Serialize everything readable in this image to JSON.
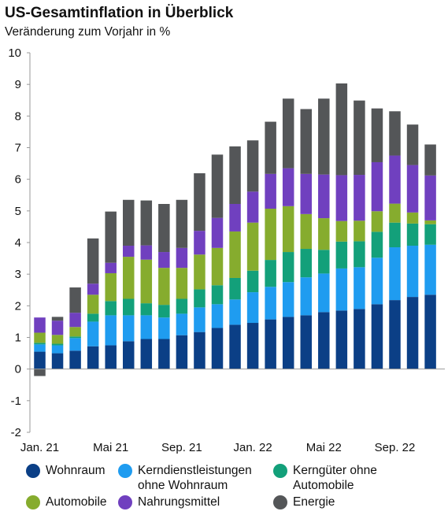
{
  "title": "US-Gesamtinflation in Überblick",
  "subtitle": "Veränderung zum Vorjahr in %",
  "colors": {
    "wohnraum": "#0b3f86",
    "kerndienst": "#1f9cf0",
    "kerngueter": "#13a07a",
    "automobile": "#86ac2e",
    "nahrung": "#7040bf",
    "energie": "#545658",
    "axis": "#999999"
  },
  "legend": [
    {
      "key": "wohnraum",
      "label": "Wohnraum"
    },
    {
      "key": "kerndienst",
      "label": "Kerndienstleistungen\nohne Wohnraum"
    },
    {
      "key": "kerngueter",
      "label": "Kerngüter ohne\nAutomobile"
    },
    {
      "key": "automobile",
      "label": "Automobile"
    },
    {
      "key": "nahrung",
      "label": "Nahrungsmittel"
    },
    {
      "key": "energie",
      "label": "Energie"
    }
  ],
  "chart_data": {
    "type": "bar",
    "stacked": true,
    "title": "US-Gesamtinflation in Überblick",
    "subtitle": "Veränderung zum Vorjahr in %",
    "xlabel": "",
    "ylabel": "",
    "ylim": [
      -2,
      10
    ],
    "yticks": [
      -2,
      -1,
      0,
      1,
      2,
      3,
      4,
      5,
      6,
      7,
      8,
      9,
      10
    ],
    "xtick_labels": [
      {
        "index": 0,
        "label": "Jan. 21"
      },
      {
        "index": 4,
        "label": "Mai 21"
      },
      {
        "index": 8,
        "label": "Sep. 21"
      },
      {
        "index": 12,
        "label": "Jan. 22"
      },
      {
        "index": 16,
        "label": "Mai 22"
      },
      {
        "index": 20,
        "label": "Sep. 22"
      }
    ],
    "categories": [
      "Jan 21",
      "Feb 21",
      "Mär 21",
      "Apr 21",
      "Mai 21",
      "Jun 21",
      "Jul 21",
      "Aug 21",
      "Sep 21",
      "Okt 21",
      "Nov 21",
      "Dez 21",
      "Jan 22",
      "Feb 22",
      "Mär 22",
      "Apr 22",
      "Mai 22",
      "Jun 22",
      "Jul 22",
      "Aug 22",
      "Sep 22",
      "Okt 22",
      "Nov 22"
    ],
    "grid": false,
    "legend_position": "bottom",
    "series": [
      {
        "name": "Wohnraum",
        "key": "wohnraum",
        "values": [
          0.55,
          0.5,
          0.58,
          0.72,
          0.75,
          0.88,
          0.95,
          0.95,
          1.07,
          1.17,
          1.3,
          1.4,
          1.46,
          1.57,
          1.65,
          1.7,
          1.8,
          1.85,
          1.9,
          2.05,
          2.18,
          2.28,
          2.35
        ]
      },
      {
        "name": "Kerndienstleistungen ohne Wohnraum",
        "key": "kerndienst",
        "values": [
          0.23,
          0.25,
          0.4,
          0.78,
          0.95,
          0.82,
          0.75,
          0.68,
          0.68,
          0.78,
          0.75,
          0.8,
          0.97,
          1.03,
          1.1,
          1.2,
          1.22,
          1.33,
          1.32,
          1.47,
          1.67,
          1.62,
          1.58
        ]
      },
      {
        "name": "Kerngüter ohne Automobile",
        "key": "kerngueter",
        "values": [
          0.05,
          0.05,
          0.05,
          0.25,
          0.45,
          0.52,
          0.38,
          0.4,
          0.47,
          0.57,
          0.6,
          0.68,
          0.68,
          0.85,
          0.95,
          0.9,
          0.75,
          0.85,
          0.82,
          0.82,
          0.78,
          0.7,
          0.65
        ]
      },
      {
        "name": "Automobile",
        "key": "automobile",
        "values": [
          0.32,
          0.28,
          0.3,
          0.6,
          0.88,
          1.33,
          1.38,
          1.17,
          0.98,
          1.1,
          1.18,
          1.47,
          1.52,
          1.62,
          1.45,
          1.1,
          1.0,
          0.65,
          0.65,
          0.65,
          0.6,
          0.35,
          0.12
        ]
      },
      {
        "name": "Nahrungsmittel",
        "key": "nahrung",
        "values": [
          0.48,
          0.45,
          0.45,
          0.35,
          0.33,
          0.35,
          0.45,
          0.5,
          0.63,
          0.75,
          0.95,
          0.87,
          0.98,
          1.1,
          1.2,
          1.27,
          1.38,
          1.45,
          1.45,
          1.55,
          1.52,
          1.5,
          1.42
        ]
      },
      {
        "name": "Energie",
        "key": "energie",
        "values": [
          -0.22,
          0.12,
          0.8,
          1.43,
          1.62,
          1.45,
          1.42,
          1.52,
          1.52,
          1.82,
          2.0,
          1.82,
          1.62,
          1.65,
          2.2,
          2.05,
          2.4,
          2.9,
          2.35,
          1.7,
          1.4,
          1.28,
          0.98
        ]
      }
    ]
  }
}
